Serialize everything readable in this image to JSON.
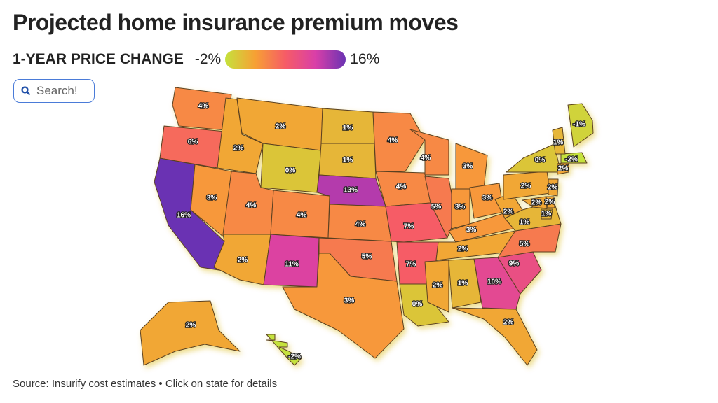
{
  "chart_data": {
    "type": "choropleth",
    "title": "Projected home insurance premium moves",
    "legend_title": "1-YEAR PRICE CHANGE",
    "legend_min": {
      "value": -2,
      "label": "-2%"
    },
    "legend_max": {
      "value": 16,
      "label": "16%"
    },
    "color_scale": [
      "#c5e23c",
      "#f7a034",
      "#f65c66",
      "#d93fa8",
      "#6b33b3"
    ],
    "search_placeholder": "Search!",
    "source": "Source: Insurify cost estimates • Click on state for details",
    "values": [
      4,
      6,
      16,
      3,
      2,
      2,
      0,
      4,
      2,
      4,
      11,
      1,
      1,
      13,
      4,
      5,
      3,
      4,
      4,
      7,
      7,
      0,
      4,
      5,
      3,
      3,
      3,
      3,
      2,
      2,
      1,
      10,
      2,
      9,
      5,
      1,
      2,
      2,
      0,
      2,
      2,
      2,
      2,
      -2,
      1,
      -1,
      2,
      -2,
      1
    ],
    "value_labels": [
      "4%",
      "6%",
      "16%",
      "3%",
      "2%",
      "2%",
      "0%",
      "4%",
      "2%",
      "4%",
      "11%",
      "1%",
      "1%",
      "13%",
      "4%",
      "5%",
      "3%",
      "4%",
      "4%",
      "7%",
      "7%",
      "0%",
      "4%",
      "5%",
      "3%",
      "3%",
      "3%",
      "3%",
      "2%",
      "2%",
      "1%",
      "10%",
      "2%",
      "9%",
      "5%",
      "1%",
      "2%",
      "2%",
      "0%",
      "2%",
      "2%",
      "2%",
      "2%",
      "-2%",
      "1%",
      "-1%",
      "2%",
      "-2%",
      "1%"
    ]
  }
}
